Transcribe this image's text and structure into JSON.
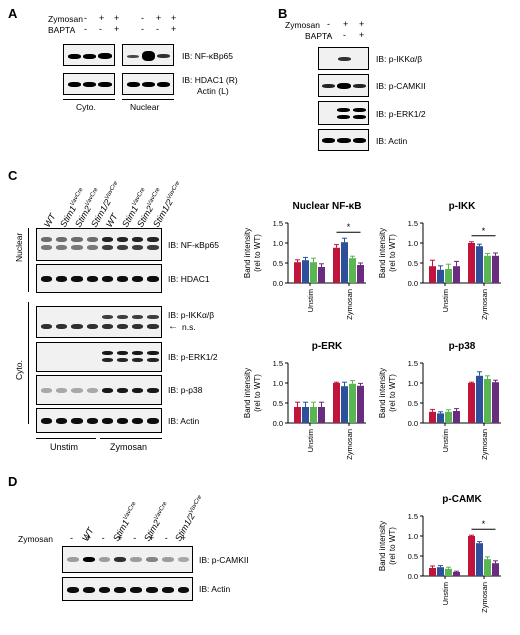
{
  "panelA": {
    "letter": "A",
    "rows": [
      {
        "label": "Zymosan",
        "marks": [
          "-",
          "+",
          "+",
          "-",
          "+",
          "+"
        ]
      },
      {
        "label": "BAPTA",
        "marks": [
          "-",
          "-",
          "+",
          "-",
          "-",
          "+"
        ]
      }
    ],
    "blots": [
      "IB: NF-κBp65",
      "IB: HDAC1 (R)",
      "Actin (L)"
    ],
    "groups": [
      "Cyto.",
      "Nuclear"
    ]
  },
  "panelB": {
    "letter": "B",
    "rows": [
      {
        "label": "Zymosan",
        "marks": [
          "-",
          "+",
          "+"
        ]
      },
      {
        "label": "BAPTA",
        "marks": [
          "-",
          "-",
          "+"
        ]
      }
    ],
    "blots": [
      "IB: p-IKKα/β",
      "IB: p-CAMKII",
      "IB: p-ERK1/2",
      "IB: Actin"
    ]
  },
  "panelC": {
    "letter": "C",
    "lanes": [
      {
        "base": "WT",
        "sup": ""
      },
      {
        "base": "Stim1",
        "sup": "VavCre"
      },
      {
        "base": "Stim2",
        "sup": "VavCre"
      },
      {
        "base": "Stim1/2",
        "sup": "VavCre"
      },
      {
        "base": "WT",
        "sup": ""
      },
      {
        "base": "Stim1",
        "sup": "VavCre"
      },
      {
        "base": "Stim2",
        "sup": "VavCre"
      },
      {
        "base": "Stim1/2",
        "sup": "VavCre"
      }
    ],
    "nuclear_label": "Nuclear",
    "cyto_label": "Cyto.",
    "blots": [
      "IB: NF-κBp65",
      "IB: HDAC1",
      "IB: p-IKKα/β",
      "n.s.",
      "IB: p-ERK1/2",
      "IB: p-p38",
      "IB: Actin"
    ],
    "conditions": [
      "Unstim",
      "Zymosan"
    ]
  },
  "panelD": {
    "letter": "D",
    "lanes": [
      {
        "base": "WT",
        "sup": ""
      },
      {
        "base": "Stim1",
        "sup": "VavCre"
      },
      {
        "base": "Stim2",
        "sup": "VavCre"
      },
      {
        "base": "Stim1/2",
        "sup": "VavCre"
      }
    ],
    "zymosan_label": "Zymosan",
    "marks": [
      "-",
      "+",
      "-",
      "+",
      "-",
      "+",
      "-",
      "+"
    ],
    "blots": [
      "IB: p-CAMKII",
      "IB: Actin"
    ]
  },
  "colors": [
    "#c0143c",
    "#2e4f9a",
    "#5bb552",
    "#6a2c7e"
  ],
  "chart_data": [
    {
      "type": "bar",
      "title": "Nuclear NF-κB",
      "ylabel": "Band intensity\n(rel to WT)",
      "ylim": [
        0,
        1.5
      ],
      "yticks": [
        "0.0",
        "0.5",
        "1.0",
        "1.5"
      ],
      "categories": [
        "Unstim",
        "Zymosan"
      ],
      "series": [
        {
          "values": [
            0.52,
            0.88
          ],
          "err": [
            0.06,
            0.08
          ]
        },
        {
          "values": [
            0.57,
            1.02
          ],
          "err": [
            0.07,
            0.1
          ]
        },
        {
          "values": [
            0.52,
            0.62
          ],
          "err": [
            0.1,
            0.05
          ]
        },
        {
          "values": [
            0.4,
            0.45
          ],
          "err": [
            0.08,
            0.05
          ]
        }
      ],
      "significance": "*"
    },
    {
      "type": "bar",
      "title": "p-IKK",
      "ylabel": "Band intensity\n(rel to WT)",
      "ylim": [
        0,
        1.5
      ],
      "yticks": [
        "0.0",
        "0.5",
        "1.0",
        "1.5"
      ],
      "categories": [
        "Unstim",
        "Zymosan"
      ],
      "series": [
        {
          "values": [
            0.42,
            1.0
          ],
          "err": [
            0.15,
            0.03
          ]
        },
        {
          "values": [
            0.33,
            0.92
          ],
          "err": [
            0.1,
            0.05
          ]
        },
        {
          "values": [
            0.35,
            0.68
          ],
          "err": [
            0.12,
            0.06
          ]
        },
        {
          "values": [
            0.42,
            0.68
          ],
          "err": [
            0.12,
            0.07
          ]
        }
      ],
      "significance": "*"
    },
    {
      "type": "bar",
      "title": "p-ERK",
      "ylabel": "Band intensity\n(rel to WT)",
      "ylim": [
        0,
        1.5
      ],
      "yticks": [
        "0.0",
        "0.5",
        "1.0",
        "1.5"
      ],
      "categories": [
        "Unstim",
        "Zymosan"
      ],
      "series": [
        {
          "values": [
            0.4,
            1.0
          ],
          "err": [
            0.12,
            0.02
          ]
        },
        {
          "values": [
            0.4,
            0.92
          ],
          "err": [
            0.12,
            0.1
          ]
        },
        {
          "values": [
            0.4,
            0.98
          ],
          "err": [
            0.12,
            0.08
          ]
        },
        {
          "values": [
            0.4,
            0.93
          ],
          "err": [
            0.12,
            0.06
          ]
        }
      ],
      "significance": ""
    },
    {
      "type": "bar",
      "title": "p-p38",
      "ylabel": "Band intensity\n(rel to WT)",
      "ylim": [
        0,
        1.5
      ],
      "yticks": [
        "0.0",
        "0.5",
        "1.0",
        "1.5"
      ],
      "categories": [
        "Unstim",
        "Zymosan"
      ],
      "series": [
        {
          "values": [
            0.28,
            1.0
          ],
          "err": [
            0.06,
            0.02
          ]
        },
        {
          "values": [
            0.24,
            1.18
          ],
          "err": [
            0.04,
            0.1
          ]
        },
        {
          "values": [
            0.28,
            1.1
          ],
          "err": [
            0.05,
            0.08
          ]
        },
        {
          "values": [
            0.3,
            1.02
          ],
          "err": [
            0.06,
            0.05
          ]
        }
      ],
      "significance": ""
    },
    {
      "type": "bar",
      "title": "p-CAMK",
      "ylabel": "Band intensity\n(rel to WT)",
      "ylim": [
        0,
        1.5
      ],
      "yticks": [
        "0.0",
        "0.5",
        "1.0",
        "1.5"
      ],
      "categories": [
        "Unstim",
        "Zymosan"
      ],
      "series": [
        {
          "values": [
            0.2,
            1.0
          ],
          "err": [
            0.05,
            0.02
          ]
        },
        {
          "values": [
            0.22,
            0.82
          ],
          "err": [
            0.04,
            0.04
          ]
        },
        {
          "values": [
            0.18,
            0.42
          ],
          "err": [
            0.04,
            0.06
          ]
        },
        {
          "values": [
            0.1,
            0.32
          ],
          "err": [
            0.02,
            0.06
          ]
        }
      ],
      "significance": "*"
    }
  ]
}
